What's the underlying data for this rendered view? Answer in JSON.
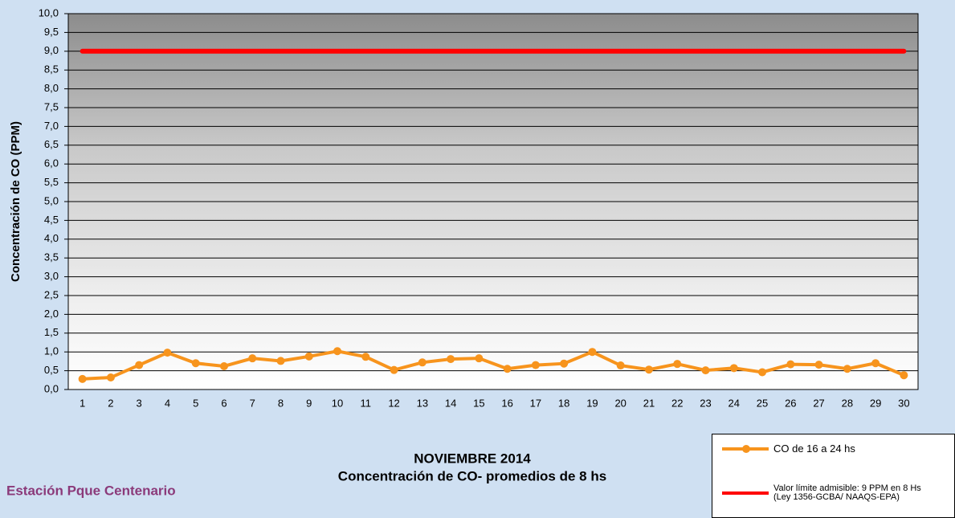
{
  "chart_data": {
    "type": "line",
    "title": "NOVIEMBRE 2014",
    "subtitle": "Concentración de CO- promedios de 8 hs",
    "annotation": "Estación Pque Centenario",
    "y_label": "Concentración de CO (PPM)",
    "categories": [
      "1",
      "2",
      "3",
      "4",
      "5",
      "6",
      "7",
      "8",
      "9",
      "10",
      "11",
      "12",
      "13",
      "14",
      "15",
      "16",
      "17",
      "18",
      "19",
      "20",
      "21",
      "22",
      "23",
      "24",
      "25",
      "26",
      "27",
      "28",
      "29",
      "30"
    ],
    "series": [
      {
        "name": "CO de 16 a 24 hs",
        "color": "#f7941d",
        "markers": true,
        "values": [
          0.28,
          0.32,
          0.65,
          0.98,
          0.7,
          0.62,
          0.83,
          0.76,
          0.88,
          1.02,
          0.87,
          0.52,
          0.72,
          0.81,
          0.83,
          0.55,
          0.65,
          0.69,
          1.0,
          0.64,
          0.53,
          0.68,
          0.51,
          0.57,
          0.46,
          0.67,
          0.66,
          0.55,
          0.7,
          0.38
        ]
      },
      {
        "name": "Valor límite admisible: 9 PPM en 8 Hs\n(Ley 1356-GCBA/ NAAQS-EPA)",
        "color": "#ff0000",
        "markers": false,
        "values": [
          9,
          9,
          9,
          9,
          9,
          9,
          9,
          9,
          9,
          9,
          9,
          9,
          9,
          9,
          9,
          9,
          9,
          9,
          9,
          9,
          9,
          9,
          9,
          9,
          9,
          9,
          9,
          9,
          9,
          9
        ]
      }
    ],
    "ylim": [
      0,
      10
    ],
    "yticks": [
      {
        "value": 0,
        "label": "0,0"
      },
      {
        "value": 0.5,
        "label": "0,5"
      },
      {
        "value": 1,
        "label": "1,0"
      },
      {
        "value": 1.5,
        "label": "1,5"
      },
      {
        "value": 2,
        "label": "2,0"
      },
      {
        "value": 2.5,
        "label": "2,5"
      },
      {
        "value": 3,
        "label": "3,0"
      },
      {
        "value": 3.5,
        "label": "3,5"
      },
      {
        "value": 4,
        "label": "4,0"
      },
      {
        "value": 4.5,
        "label": "4,5"
      },
      {
        "value": 5,
        "label": "5,0"
      },
      {
        "value": 5.5,
        "label": "5,5"
      },
      {
        "value": 6,
        "label": "6,0"
      },
      {
        "value": 6.5,
        "label": "6,5"
      },
      {
        "value": 7,
        "label": "7,0"
      },
      {
        "value": 7.5,
        "label": "7,5"
      },
      {
        "value": 8,
        "label": "8,0"
      },
      {
        "value": 8.5,
        "label": "8,5"
      },
      {
        "value": 9,
        "label": "9,0"
      },
      {
        "value": 9.5,
        "label": "9,5"
      },
      {
        "value": 10,
        "label": "10,0"
      }
    ],
    "grid": true
  }
}
